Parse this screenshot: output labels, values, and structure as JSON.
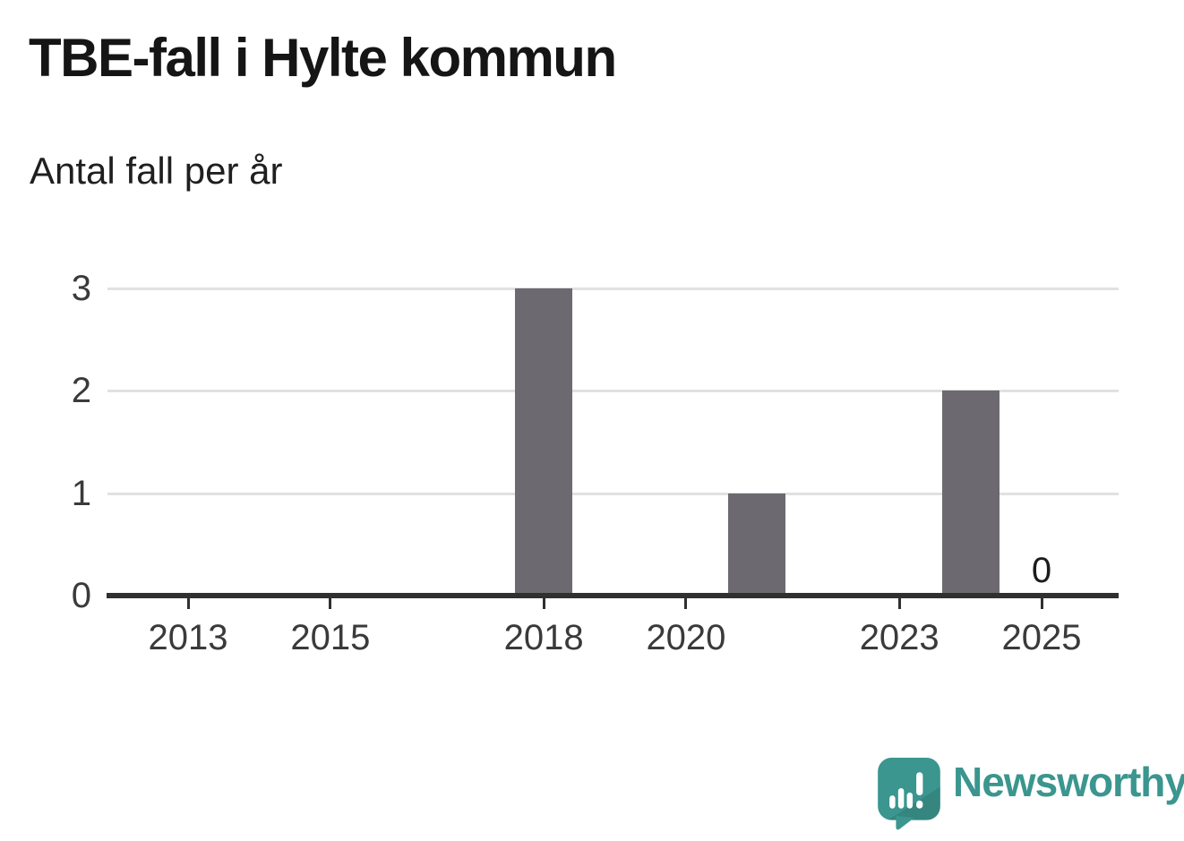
{
  "chart_data": {
    "type": "bar",
    "title": "TBE-fall i Hylte kommun",
    "subtitle": "Antal fall per år",
    "xlabel": "",
    "ylabel": "Antal fall per år",
    "x": [
      2012,
      2013,
      2014,
      2015,
      2016,
      2017,
      2018,
      2019,
      2020,
      2021,
      2022,
      2023,
      2024,
      2025
    ],
    "values": [
      0,
      0,
      0,
      0,
      0,
      0,
      3,
      0,
      0,
      1,
      0,
      0,
      2,
      0
    ],
    "xticks": [
      "2013",
      "2015",
      "2018",
      "2020",
      "2023",
      "2025"
    ],
    "yticks": [
      "0",
      "1",
      "2",
      "3"
    ],
    "ylim": [
      0,
      3
    ],
    "grid": true,
    "legend": "none",
    "bar_color": "#6C6A70",
    "gridline_color": "#E1E1E1",
    "axis_color": "#303030",
    "annotations": [
      {
        "x": 2025,
        "text": "0"
      }
    ]
  },
  "branding": {
    "logo_text": "Newsworthy",
    "logo_icon": "newsworthy-speech-bubble-barchart-icon",
    "teal": "#3A968E",
    "teal_dark": "#2E7D76"
  }
}
